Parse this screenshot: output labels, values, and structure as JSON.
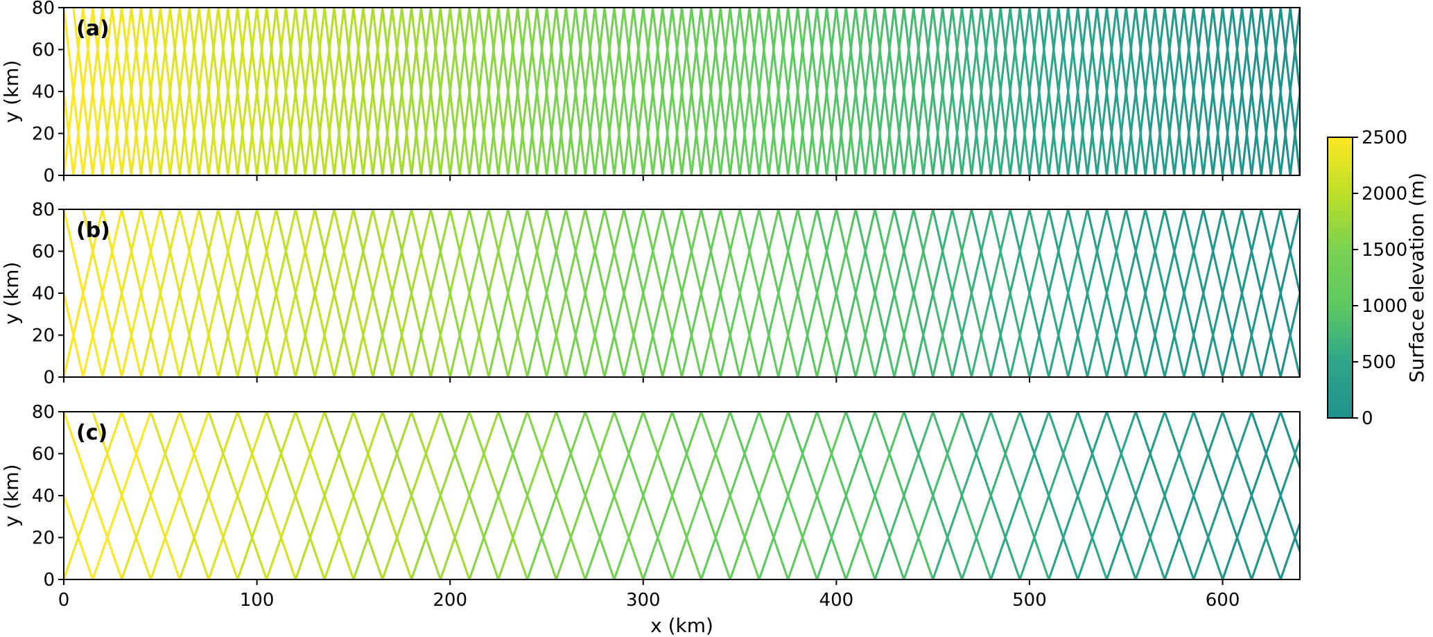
{
  "colors": {
    "colormap_stops": [
      {
        "value": 0,
        "color": "#21918c"
      },
      {
        "value": 500,
        "color": "#2ea68a"
      },
      {
        "value": 1000,
        "color": "#5ec962"
      },
      {
        "value": 1500,
        "color": "#7ad151"
      },
      {
        "value": 2000,
        "color": "#bddf26"
      },
      {
        "value": 2500,
        "color": "#fde725"
      }
    ]
  },
  "chart_data": {
    "type": "line",
    "xlabel": "x (km)",
    "xlim": [
      0,
      640
    ],
    "xticks": [
      0,
      100,
      200,
      300,
      400,
      500,
      600
    ],
    "colorbar": {
      "label": "Surface elevation (m)",
      "range": [
        0,
        2500
      ],
      "ticks": [
        0,
        500,
        1000,
        1500,
        2000,
        2500
      ]
    },
    "panels": [
      {
        "label": "(a)",
        "ylabel": "y (km)",
        "ylim": [
          0,
          80
        ],
        "yticks": [
          0,
          20,
          40,
          60,
          80
        ],
        "track_spacing_km": 5,
        "description": "crossing zigzag flight lines, spacing ~5 km"
      },
      {
        "label": "(b)",
        "ylabel": "y (km)",
        "ylim": [
          0,
          80
        ],
        "yticks": [
          0,
          20,
          40,
          60,
          80
        ],
        "track_spacing_km": 10,
        "description": "crossing zigzag flight lines, spacing ~10 km"
      },
      {
        "label": "(c)",
        "ylabel": "y (km)",
        "ylim": [
          0,
          80
        ],
        "yticks": [
          0,
          20,
          40,
          60,
          80
        ],
        "track_spacing_km": 15,
        "description": "crossing zigzag flight lines, spacing ~15 km"
      }
    ]
  }
}
